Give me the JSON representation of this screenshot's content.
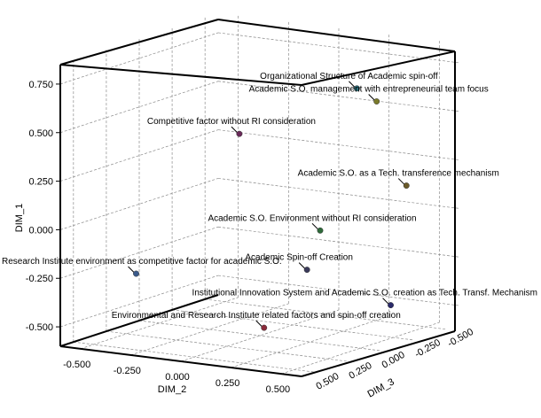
{
  "chart_data": {
    "type": "scatter",
    "projection": "3d",
    "title": "",
    "axes": {
      "dim1": {
        "label": "DIM_1",
        "ticks": [
          "0.750",
          "0.500",
          "0.250",
          "0.000",
          "-0.250",
          "-0.500"
        ],
        "range": [
          -0.6,
          0.85
        ]
      },
      "dim2": {
        "label": "DIM_2",
        "ticks": [
          "-0.500",
          "-0.250",
          "0.000",
          "0.250",
          "0.500"
        ],
        "range": [
          -0.6,
          0.6
        ]
      },
      "dim3": {
        "label": "DIM_3",
        "ticks": [
          "0.500",
          "0.250",
          "0.000",
          "-0.250",
          "-0.500"
        ],
        "range": [
          -0.6,
          0.6
        ]
      }
    },
    "grid": true,
    "points": [
      {
        "label": "Organizational Structure of Academic spin-off",
        "color": "#2a6f7a",
        "dim1": 0.72,
        "dim2": 0.45,
        "dim3": -0.05
      },
      {
        "label": "Academic S.O. management with entrepreneurial team focus",
        "color": "#7a7a2a",
        "dim1": 0.62,
        "dim2": 0.45,
        "dim3": -0.2
      },
      {
        "label": "Competitive factor without RI consideration",
        "color": "#6a2a5a",
        "dim1": 0.38,
        "dim2": -0.2,
        "dim3": -0.15
      },
      {
        "label": "Academic S.O. as a Tech. transference mechanism",
        "color": "#6a5a2a",
        "dim1": 0.16,
        "dim2": 0.5,
        "dim3": -0.35
      },
      {
        "label": "Academic S.O. Environment without RI consideration",
        "color": "#2e6a3a",
        "dim1": -0.02,
        "dim2": 0.3,
        "dim3": 0.0
      },
      {
        "label": "Academic Spin-off Creation",
        "color": "#3a3a5a",
        "dim1": -0.2,
        "dim2": 0.3,
        "dim3": 0.1
      },
      {
        "label": "Research Institute environment as competitive factor for academic S.O.",
        "color": "#3a5a8a",
        "dim1": -0.33,
        "dim2": -0.55,
        "dim3": 0.1
      },
      {
        "label": "Institutional Innovation System and Academic S.O. creation as Tech. Transf. Mechanism",
        "color": "#2a2a6a",
        "dim1": -0.42,
        "dim2": 0.52,
        "dim3": -0.2
      },
      {
        "label": "Environmental and Research Institute related factors and spin-off creation",
        "color": "#8a2a3a",
        "dim1": -0.45,
        "dim2": 0.25,
        "dim3": 0.35
      }
    ]
  }
}
